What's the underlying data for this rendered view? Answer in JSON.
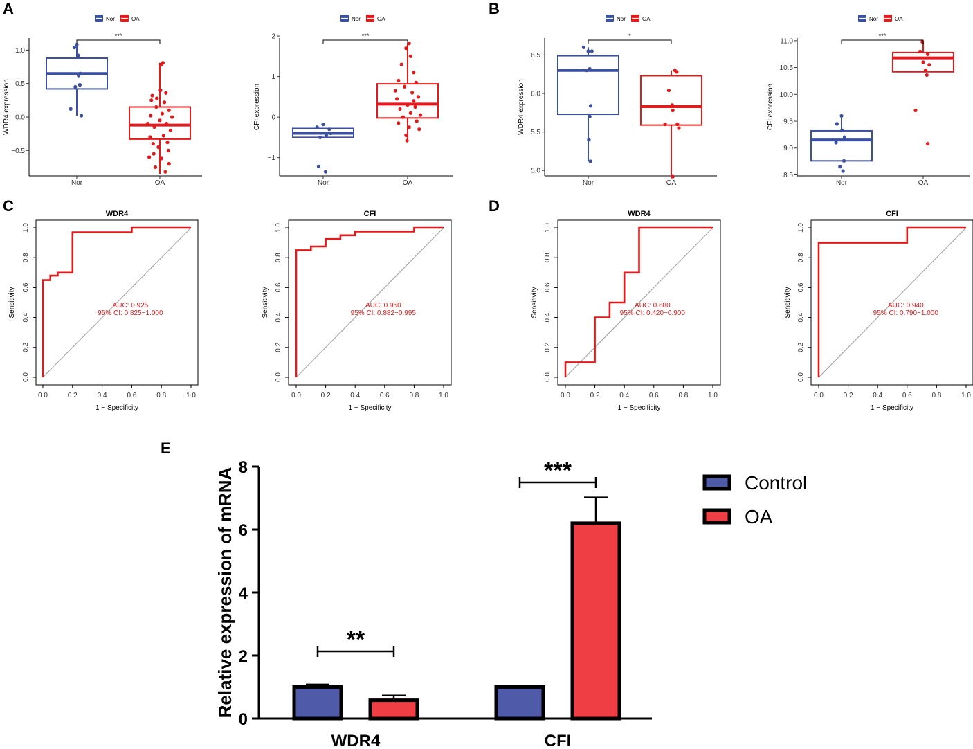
{
  "panel_letters": {
    "A": "A",
    "B": "B",
    "C": "C",
    "D": "D",
    "E": "E"
  },
  "colors": {
    "nor": "#3c50a0",
    "oa": "#e31a1c",
    "control_bar": "#4f5aa8",
    "oa_bar": "#ef3f45",
    "diag": "#a8a8a8",
    "roc": "#e31a1c"
  },
  "chart_data": [
    {
      "id": "A1",
      "type": "box",
      "ylabel": "WDR4 expression",
      "legend": [
        "Nor",
        "OA"
      ],
      "categories": [
        "Nor",
        "OA"
      ],
      "yticks": [
        -0.5,
        0.0,
        0.5,
        1.0
      ],
      "ytick_labels": [
        "−0.5",
        "0.0",
        "0.5",
        "1.0"
      ],
      "ylim": [
        -0.88,
        1.18
      ],
      "sig": "***",
      "boxes": [
        {
          "q1": 0.42,
          "median": 0.65,
          "q3": 0.88,
          "wmin": 0.02,
          "wmax": 1.08
        },
        {
          "q1": -0.33,
          "median": -0.12,
          "q3": 0.15,
          "wmin": -0.85,
          "wmax": 0.81
        }
      ],
      "points": [
        [
          [
            0.0,
            1.08
          ],
          [
            -0.08,
            1.04
          ],
          [
            0.05,
            0.92
          ],
          [
            0.12,
            0.65
          ],
          [
            0.1,
            0.48
          ],
          [
            -0.05,
            0.45
          ],
          [
            -0.2,
            0.12
          ],
          [
            0.15,
            0.02
          ],
          [
            0.06,
            0.62
          ]
        ],
        [
          [
            0.1,
            0.81
          ],
          [
            0.05,
            0.78
          ],
          [
            -0.25,
            0.32
          ],
          [
            0.2,
            0.36
          ],
          [
            -0.1,
            0.28
          ],
          [
            0.15,
            0.22
          ],
          [
            0.3,
            0.1
          ],
          [
            -0.3,
            0.02
          ],
          [
            0.0,
            -0.05
          ],
          [
            0.22,
            -0.1
          ],
          [
            -0.18,
            -0.15
          ],
          [
            0.35,
            -0.2
          ],
          [
            -0.32,
            -0.3
          ],
          [
            0.12,
            -0.28
          ],
          [
            -0.05,
            -0.45
          ],
          [
            0.28,
            -0.5
          ],
          [
            -0.2,
            -0.55
          ],
          [
            0.05,
            -0.62
          ],
          [
            0.3,
            -0.7
          ],
          [
            -0.15,
            -0.75
          ],
          [
            0.18,
            -0.82
          ],
          [
            -0.35,
            -0.6
          ],
          [
            0.08,
            0.05
          ],
          [
            -0.12,
            0.15
          ],
          [
            0.25,
            -0.38
          ],
          [
            -0.28,
            0.25
          ],
          [
            0.4,
            0.0
          ],
          [
            -0.4,
            -0.1
          ],
          [
            0.02,
            0.4
          ],
          [
            -0.22,
            -0.4
          ]
        ]
      ]
    },
    {
      "id": "A2",
      "type": "box",
      "ylabel": "CFI expression",
      "legend": [
        "Nor",
        "OA"
      ],
      "categories": [
        "Nor",
        "OA"
      ],
      "yticks": [
        -1,
        0,
        1,
        2
      ],
      "ytick_labels": [
        "−1",
        "0",
        "1",
        "2"
      ],
      "ylim": [
        -1.45,
        1.95
      ],
      "sig": "***",
      "boxes": [
        {
          "q1": -0.5,
          "median": -0.4,
          "q3": -0.28,
          "wmin": -0.5,
          "wmax": -0.28
        },
        {
          "q1": -0.02,
          "median": 0.32,
          "q3": 0.82,
          "wmin": -0.58,
          "wmax": 1.82
        }
      ],
      "points": [
        [
          [
            0.0,
            -0.18
          ],
          [
            -0.2,
            -0.25
          ],
          [
            0.2,
            -0.3
          ],
          [
            0.1,
            -0.45
          ],
          [
            -0.1,
            -0.5
          ],
          [
            -0.15,
            -1.22
          ],
          [
            0.08,
            -1.35
          ],
          [
            0.25,
            -0.4
          ]
        ],
        [
          [
            0.05,
            1.82
          ],
          [
            -0.05,
            1.7
          ],
          [
            0.1,
            1.5
          ],
          [
            -0.2,
            1.3
          ],
          [
            0.2,
            1.1
          ],
          [
            -0.3,
            0.9
          ],
          [
            0.28,
            0.85
          ],
          [
            -0.1,
            0.75
          ],
          [
            0.15,
            0.6
          ],
          [
            0.35,
            0.5
          ],
          [
            -0.35,
            0.45
          ],
          [
            0.0,
            0.3
          ],
          [
            0.25,
            0.25
          ],
          [
            -0.25,
            0.2
          ],
          [
            0.1,
            0.1
          ],
          [
            -0.15,
            0.0
          ],
          [
            0.3,
            -0.1
          ],
          [
            -0.3,
            -0.15
          ],
          [
            0.05,
            -0.25
          ],
          [
            0.38,
            -0.3
          ],
          [
            -0.05,
            -0.45
          ],
          [
            -0.02,
            -0.58
          ],
          [
            0.2,
            0.4
          ],
          [
            -0.4,
            0.65
          ],
          [
            0.42,
            0.05
          ]
        ]
      ]
    },
    {
      "id": "B1",
      "type": "box",
      "ylabel": "WDR4 expression",
      "legend": [
        "Nor",
        "OA"
      ],
      "categories": [
        "Nor",
        "OA"
      ],
      "yticks": [
        5.0,
        5.5,
        6.0,
        6.5
      ],
      "ytick_labels": [
        "5.0",
        "5.5",
        "6.0",
        "6.5"
      ],
      "ylim": [
        4.93,
        6.72
      ],
      "sig": "*",
      "boxes": [
        {
          "q1": 5.73,
          "median": 6.3,
          "q3": 6.49,
          "wmin": 5.12,
          "wmax": 6.6
        },
        {
          "q1": 5.59,
          "median": 5.83,
          "q3": 6.23,
          "wmin": 4.92,
          "wmax": 6.3
        }
      ],
      "points": [
        [
          [
            -0.15,
            6.6
          ],
          [
            0.0,
            6.55
          ],
          [
            0.12,
            6.55
          ],
          [
            -0.05,
            6.3
          ],
          [
            0.05,
            6.32
          ],
          [
            0.08,
            5.84
          ],
          [
            0.05,
            5.7
          ],
          [
            0.02,
            5.4
          ],
          [
            0.07,
            5.12
          ]
        ],
        [
          [
            0.12,
            6.3
          ],
          [
            0.18,
            6.28
          ],
          [
            -0.08,
            6.04
          ],
          [
            0.05,
            5.78
          ],
          [
            -0.2,
            5.6
          ],
          [
            0.2,
            5.6
          ],
          [
            0.25,
            5.55
          ],
          [
            0.05,
            4.92
          ],
          [
            0.03,
            5.85
          ]
        ]
      ]
    },
    {
      "id": "B2",
      "type": "box",
      "ylabel": "CFI expression",
      "legend": [
        "Nor",
        "OA"
      ],
      "categories": [
        "Nor",
        "OA"
      ],
      "yticks": [
        8.5,
        9.0,
        9.5,
        10.0,
        10.5,
        11.0
      ],
      "ytick_labels": [
        "8.5",
        "9.0",
        "9.5",
        "10.0",
        "10.5",
        "11.0"
      ],
      "ylim": [
        8.48,
        11.05
      ],
      "sig": "***",
      "boxes": [
        {
          "q1": 8.76,
          "median": 9.15,
          "q3": 9.32,
          "wmin": 8.76,
          "wmax": 9.6
        },
        {
          "q1": 10.42,
          "median": 10.68,
          "q3": 10.78,
          "wmin": 10.42,
          "wmax": 10.98
        }
      ],
      "points": [
        [
          [
            0.0,
            9.6
          ],
          [
            -0.15,
            9.45
          ],
          [
            0.02,
            9.33
          ],
          [
            0.1,
            9.2
          ],
          [
            -0.18,
            9.1
          ],
          [
            0.08,
            8.76
          ],
          [
            -0.05,
            8.65
          ],
          [
            0.05,
            8.57
          ]
        ],
        [
          [
            -0.03,
            10.98
          ],
          [
            -0.1,
            10.8
          ],
          [
            0.15,
            10.75
          ],
          [
            0.0,
            10.6
          ],
          [
            0.08,
            10.45
          ],
          [
            0.12,
            10.36
          ],
          [
            -0.25,
            9.7
          ],
          [
            0.15,
            9.08
          ],
          [
            0.2,
            10.55
          ]
        ]
      ]
    },
    {
      "id": "C1",
      "type": "roc",
      "title": "WDR4",
      "xlabel": "1 − Specificity",
      "ylabel": "Sensitivity",
      "auc_text": "AUC: 0.925",
      "ci_text": "95% CI: 0.825−1.000",
      "ticks": [
        "0.0",
        "0.2",
        "0.4",
        "0.6",
        "0.8",
        "1.0"
      ],
      "fpr": [
        0,
        0,
        0.05,
        0.05,
        0.1,
        0.1,
        0.2,
        0.2,
        0.6,
        0.6,
        1.0
      ],
      "tpr": [
        0,
        0.65,
        0.65,
        0.68,
        0.68,
        0.7,
        0.7,
        0.97,
        0.97,
        1.0,
        1.0
      ]
    },
    {
      "id": "C2",
      "type": "roc",
      "title": "CFI",
      "xlabel": "1 − Specificity",
      "ylabel": "Sensitivity",
      "auc_text": "AUC: 0.950",
      "ci_text": "95% CI: 0.882−0.995",
      "ticks": [
        "0.0",
        "0.2",
        "0.4",
        "0.6",
        "0.8",
        "1.0"
      ],
      "fpr": [
        0,
        0,
        0.1,
        0.1,
        0.2,
        0.2,
        0.3,
        0.3,
        0.4,
        0.4,
        0.8,
        0.8,
        1.0
      ],
      "tpr": [
        0,
        0.85,
        0.85,
        0.875,
        0.875,
        0.925,
        0.925,
        0.95,
        0.95,
        0.975,
        0.975,
        1.0,
        1.0
      ]
    },
    {
      "id": "D1",
      "type": "roc",
      "title": "WDR4",
      "xlabel": "1 − Specificity",
      "ylabel": "Sensitivity",
      "auc_text": "AUC: 0.680",
      "ci_text": "95% CI: 0.420−0.900",
      "ticks": [
        "0.0",
        "0.2",
        "0.4",
        "0.6",
        "0.8",
        "1.0"
      ],
      "fpr": [
        0,
        0,
        0.2,
        0.2,
        0.3,
        0.3,
        0.4,
        0.4,
        0.5,
        0.5,
        1.0
      ],
      "tpr": [
        0,
        0.1,
        0.1,
        0.4,
        0.4,
        0.5,
        0.5,
        0.7,
        0.7,
        1.0,
        1.0
      ]
    },
    {
      "id": "D2",
      "type": "roc",
      "title": "CFI",
      "xlabel": "1 − Specificity",
      "ylabel": "Sensitivity",
      "auc_text": "AUC: 0.940",
      "ci_text": "95% CI: 0.790−1.000",
      "ticks": [
        "0.0",
        "0.2",
        "0.4",
        "0.6",
        "0.8",
        "1.0"
      ],
      "fpr": [
        0,
        0,
        0.6,
        0.6,
        1.0
      ],
      "tpr": [
        0,
        0.9,
        0.9,
        1.0,
        1.0
      ]
    },
    {
      "id": "E",
      "type": "bar",
      "ylabel": "Relative expression of  mRNA",
      "categories": [
        "WDR4",
        "CFI"
      ],
      "ylim": [
        0,
        8
      ],
      "yticks": [
        0,
        2,
        4,
        6,
        8
      ],
      "series": [
        {
          "name": "Control",
          "values": [
            1.0,
            1.0
          ],
          "errors": [
            0.08,
            0.02
          ]
        },
        {
          "name": "OA",
          "values": [
            0.58,
            6.2
          ],
          "errors": [
            0.15,
            0.82
          ]
        }
      ],
      "significance": [
        "**",
        "***"
      ]
    }
  ]
}
